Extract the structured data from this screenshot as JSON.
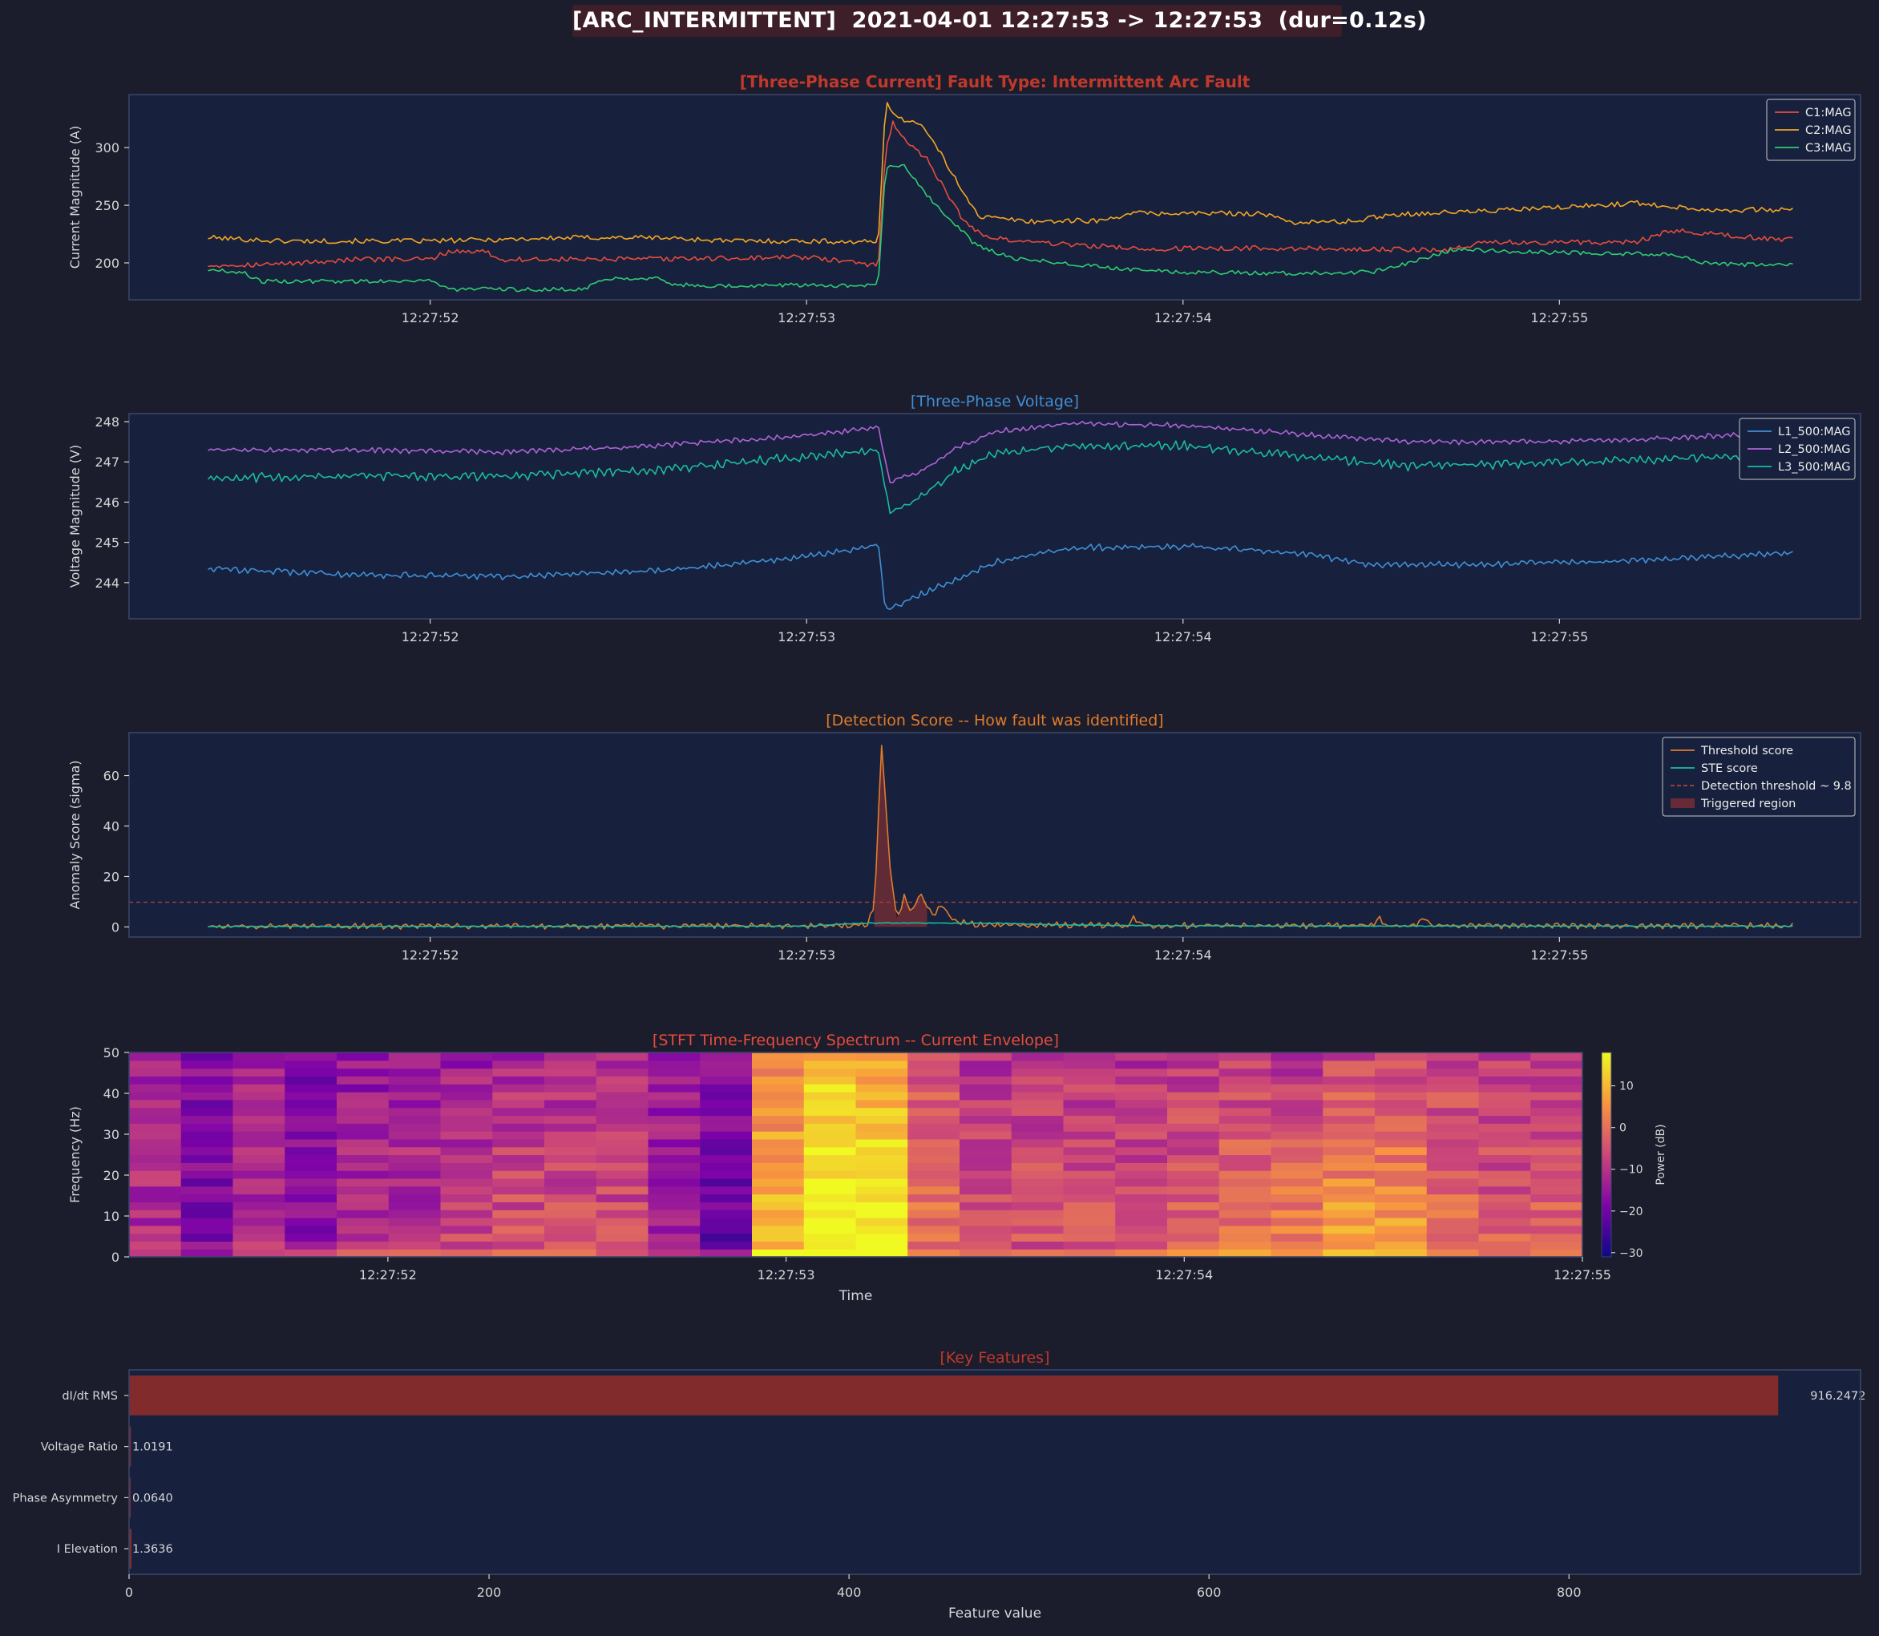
{
  "suptitle": "[ARC_INTERMITTENT]  2021-04-01 12:27:53 -> 12:27:53  (dur=0.12s)",
  "colors": {
    "figure_bg": "#1b1c2c",
    "axes_bg": "#17213d",
    "spine": "#3a4466",
    "text": "#d6d6d6",
    "title_current": "#c0392b",
    "title_voltage": "#3f8fd6",
    "title_detection": "#e07c2b",
    "title_spectrum": "#e74c3c",
    "title_features": "#c0392b"
  },
  "chart_data": [
    {
      "id": "current",
      "type": "line",
      "title": "[Three-Phase Current]  Fault Type: Intermittent Arc Fault",
      "ylabel": "Current Magnitude (A)",
      "xlabel": "",
      "xlim": [
        51.2,
        55.8
      ],
      "ylim": [
        168,
        346
      ],
      "xticks": [
        52,
        53,
        54,
        55
      ],
      "xtick_labels": [
        "12:27:52",
        "12:27:53",
        "12:27:54",
        "12:27:55"
      ],
      "yticks": [
        200,
        250,
        300
      ],
      "legend": "top-right",
      "grid": false,
      "series": [
        {
          "name": "C1:MAG",
          "color": "#e74c3c",
          "shape": [
            [
              51.41,
              198
            ],
            [
              51.6,
              199
            ],
            [
              51.8,
              203
            ],
            [
              52.0,
              203
            ],
            [
              52.05,
              210
            ],
            [
              52.15,
              210
            ],
            [
              52.18,
              203
            ],
            [
              52.5,
              203
            ],
            [
              52.8,
              204
            ],
            [
              53.0,
              205
            ],
            [
              53.18,
              198
            ],
            [
              53.19,
              193
            ],
            [
              53.21,
              300
            ],
            [
              53.23,
              322
            ],
            [
              53.27,
              303
            ],
            [
              53.32,
              290
            ],
            [
              53.36,
              268
            ],
            [
              53.42,
              235
            ],
            [
              53.48,
              222
            ],
            [
              53.6,
              218
            ],
            [
              53.9,
              212
            ],
            [
              54.2,
              213
            ],
            [
              54.5,
              212
            ],
            [
              54.7,
              211
            ],
            [
              54.8,
              218
            ],
            [
              55.1,
              218
            ],
            [
              55.2,
              218
            ],
            [
              55.3,
              228
            ],
            [
              55.6,
              220
            ],
            [
              55.62,
              220
            ]
          ],
          "jitter": 2.2
        },
        {
          "name": "C2:MAG",
          "color": "#f5a623",
          "shape": [
            [
              51.41,
              222
            ],
            [
              51.6,
              219
            ],
            [
              51.8,
              219
            ],
            [
              52.0,
              219
            ],
            [
              52.4,
              222
            ],
            [
              52.6,
              222
            ],
            [
              52.8,
              219
            ],
            [
              53.0,
              219
            ],
            [
              53.18,
              218
            ],
            [
              53.19,
              215
            ],
            [
              53.21,
              342
            ],
            [
              53.24,
              325
            ],
            [
              53.3,
              322
            ],
            [
              53.35,
              298
            ],
            [
              53.4,
              270
            ],
            [
              53.46,
              240
            ],
            [
              53.6,
              236
            ],
            [
              53.8,
              237
            ],
            [
              53.85,
              243
            ],
            [
              54.2,
              243
            ],
            [
              54.3,
              235
            ],
            [
              54.45,
              236
            ],
            [
              54.55,
              242
            ],
            [
              54.8,
              245
            ],
            [
              55.0,
              248
            ],
            [
              55.2,
              252
            ],
            [
              55.4,
              246
            ],
            [
              55.6,
              246
            ],
            [
              55.62,
              246
            ]
          ],
          "jitter": 2.2
        },
        {
          "name": "C3:MAG",
          "color": "#2ecc71",
          "shape": [
            [
              51.41,
              194
            ],
            [
              51.5,
              192
            ],
            [
              51.55,
              184
            ],
            [
              51.8,
              184
            ],
            [
              52.0,
              185
            ],
            [
              52.05,
              177
            ],
            [
              52.4,
              177
            ],
            [
              52.48,
              187
            ],
            [
              52.6,
              187
            ],
            [
              52.65,
              181
            ],
            [
              52.8,
              180
            ],
            [
              53.0,
              181
            ],
            [
              53.18,
              180
            ],
            [
              53.19,
              182
            ],
            [
              53.21,
              282
            ],
            [
              53.26,
              285
            ],
            [
              53.31,
              262
            ],
            [
              53.37,
              242
            ],
            [
              53.45,
              215
            ],
            [
              53.55,
              204
            ],
            [
              53.8,
              196
            ],
            [
              54.0,
              192
            ],
            [
              54.3,
              191
            ],
            [
              54.5,
              192
            ],
            [
              54.6,
              200
            ],
            [
              54.72,
              212
            ],
            [
              54.85,
              210
            ],
            [
              55.0,
              209
            ],
            [
              55.2,
              208
            ],
            [
              55.3,
              207
            ],
            [
              55.4,
              199
            ],
            [
              55.62,
              198
            ]
          ],
          "jitter": 1.8
        }
      ]
    },
    {
      "id": "voltage",
      "type": "line",
      "title": "[Three-Phase Voltage]",
      "ylabel": "Voltage Magnitude (V)",
      "xlabel": "",
      "xlim": [
        51.2,
        55.8
      ],
      "ylim": [
        243.1,
        248.2
      ],
      "xticks": [
        52,
        53,
        54,
        55
      ],
      "xtick_labels": [
        "12:27:52",
        "12:27:53",
        "12:27:54",
        "12:27:55"
      ],
      "yticks": [
        244,
        245,
        246,
        247,
        248
      ],
      "legend": "top-right",
      "grid": false,
      "series": [
        {
          "name": "L1_500:MAG",
          "color": "#3f8fd6",
          "shape": [
            [
              51.41,
              244.35
            ],
            [
              51.8,
              244.2
            ],
            [
              52.2,
              244.15
            ],
            [
              52.6,
              244.3
            ],
            [
              52.9,
              244.55
            ],
            [
              53.15,
              244.85
            ],
            [
              53.19,
              244.95
            ],
            [
              53.21,
              243.3
            ],
            [
              53.28,
              243.6
            ],
            [
              53.4,
              244.1
            ],
            [
              53.5,
              244.5
            ],
            [
              53.7,
              244.85
            ],
            [
              54.0,
              244.9
            ],
            [
              54.3,
              244.75
            ],
            [
              54.5,
              244.45
            ],
            [
              54.8,
              244.45
            ],
            [
              55.2,
              244.55
            ],
            [
              55.62,
              244.75
            ]
          ],
          "jitter": 0.05
        },
        {
          "name": "L2_500:MAG",
          "color": "#b163d6",
          "shape": [
            [
              51.41,
              247.3
            ],
            [
              51.8,
              247.3
            ],
            [
              52.2,
              247.25
            ],
            [
              52.6,
              247.4
            ],
            [
              52.9,
              247.6
            ],
            [
              53.15,
              247.8
            ],
            [
              53.19,
              247.9
            ],
            [
              53.22,
              246.5
            ],
            [
              53.3,
              246.75
            ],
            [
              53.4,
              247.35
            ],
            [
              53.5,
              247.75
            ],
            [
              53.7,
              247.95
            ],
            [
              54.0,
              247.9
            ],
            [
              54.3,
              247.7
            ],
            [
              54.6,
              247.5
            ],
            [
              54.9,
              247.5
            ],
            [
              55.2,
              247.55
            ],
            [
              55.62,
              247.75
            ]
          ],
          "jitter": 0.04
        },
        {
          "name": "L3_500:MAG",
          "color": "#1abc9c",
          "shape": [
            [
              51.41,
              246.6
            ],
            [
              51.8,
              246.65
            ],
            [
              52.2,
              246.65
            ],
            [
              52.6,
              246.8
            ],
            [
              52.9,
              247.05
            ],
            [
              53.15,
              247.25
            ],
            [
              53.19,
              247.3
            ],
            [
              53.22,
              245.75
            ],
            [
              53.3,
              246.1
            ],
            [
              53.4,
              246.8
            ],
            [
              53.5,
              247.2
            ],
            [
              53.7,
              247.4
            ],
            [
              54.0,
              247.4
            ],
            [
              54.3,
              247.15
            ],
            [
              54.6,
              246.9
            ],
            [
              54.9,
              246.95
            ],
            [
              55.2,
              247.05
            ],
            [
              55.62,
              247.2
            ]
          ],
          "jitter": 0.07
        }
      ]
    },
    {
      "id": "detection",
      "type": "line",
      "title": "[Detection Score -- How fault was identified]",
      "ylabel": "Anomaly Score (sigma)",
      "xlabel": "",
      "xlim": [
        51.2,
        55.8
      ],
      "ylim": [
        -4,
        77
      ],
      "xticks": [
        52,
        53,
        54,
        55
      ],
      "xtick_labels": [
        "12:27:52",
        "12:27:53",
        "12:27:54",
        "12:27:55"
      ],
      "yticks": [
        0,
        20,
        40,
        60
      ],
      "legend": "top-right",
      "grid": false,
      "threshold": 9.8,
      "triggered_region": [
        53.18,
        53.32
      ],
      "series": [
        {
          "name": "Threshold score",
          "color": "#e07c2b",
          "shape": [
            [
              51.41,
              0.3
            ],
            [
              53.16,
              0.5
            ],
            [
              53.18,
              8
            ],
            [
              53.2,
              74
            ],
            [
              53.22,
              25
            ],
            [
              53.24,
              3
            ],
            [
              53.26,
              12
            ],
            [
              53.28,
              6
            ],
            [
              53.3,
              13
            ],
            [
              53.32,
              8
            ],
            [
              53.34,
              5
            ],
            [
              53.36,
              9
            ],
            [
              53.38,
              4
            ],
            [
              53.4,
              2
            ],
            [
              53.45,
              0.8
            ],
            [
              53.85,
              0.5
            ],
            [
              53.87,
              4
            ],
            [
              53.89,
              0.5
            ],
            [
              54.5,
              0.5
            ],
            [
              54.52,
              3.5
            ],
            [
              54.54,
              0.5
            ],
            [
              54.62,
              0.5
            ],
            [
              54.64,
              3.5
            ],
            [
              54.66,
              0.5
            ],
            [
              55.62,
              0.5
            ]
          ],
          "jitter": 0.7
        },
        {
          "name": "STE score",
          "color": "#1abc9c",
          "shape": [
            [
              51.41,
              0.2
            ],
            [
              53.0,
              0.3
            ],
            [
              53.1,
              1.2
            ],
            [
              53.2,
              1.6
            ],
            [
              53.5,
              1.5
            ],
            [
              53.7,
              0.8
            ],
            [
              54.0,
              0.4
            ],
            [
              55.62,
              0.3
            ]
          ],
          "jitter": 0.1
        },
        {
          "name": "Detection threshold ~ 9.8",
          "color": "#b0413e"
        },
        {
          "name": "Triggered region",
          "color": "#7a2e35"
        }
      ]
    },
    {
      "id": "spectrum",
      "type": "heatmap",
      "title": "[STFT Time-Frequency Spectrum -- Current Envelope]",
      "ylabel": "Frequency (Hz)",
      "xlabel": "Time",
      "xlim": [
        51.35,
        55.0
      ],
      "ylim": [
        0,
        50
      ],
      "xticks": [
        52,
        53,
        54,
        55
      ],
      "xtick_labels": [
        "12:27:52",
        "12:27:53",
        "12:27:54",
        "12:27:55"
      ],
      "yticks": [
        0,
        10,
        20,
        30,
        40,
        50
      ],
      "n_time_bins": 28,
      "n_freq_bins": 26,
      "colormap": "plasma",
      "colorbar_label": "Power (dB)",
      "colorbar_range": [
        -31,
        18
      ],
      "colorbar_ticks": [
        10,
        0,
        -10,
        -20,
        -30
      ],
      "colorbar_tick_labels": [
        "10",
        "0",
        "−10",
        "−20",
        "−30"
      ],
      "column_level_db": [
        -13,
        -18,
        -14,
        -18,
        -16,
        -14,
        -14,
        -12,
        -12,
        -11,
        -14,
        -17,
        3,
        11,
        7,
        -5,
        -11,
        -9,
        -10,
        -11,
        -9,
        -8,
        -10,
        -7,
        -6,
        -8,
        -9,
        -8
      ],
      "column_low_boost_db": [
        2,
        0,
        4,
        2,
        6,
        4,
        8,
        8,
        8,
        6,
        0,
        -4,
        8,
        10,
        12,
        6,
        8,
        4,
        6,
        8,
        8,
        10,
        14,
        16,
        14,
        10,
        6,
        6
      ],
      "seed": 7
    },
    {
      "id": "features",
      "type": "bar",
      "orientation": "horizontal",
      "title": "[Key Features]",
      "ylabel": "",
      "xlabel": "Feature value",
      "xlim": [
        0,
        962
      ],
      "xticks": [
        0,
        200,
        400,
        600,
        800
      ],
      "categories": [
        "dI/dt RMS",
        "Voltage Ratio",
        "Phase Asymmetry",
        "I Elevation"
      ],
      "values": [
        916.2472,
        1.0191,
        0.064,
        1.3636
      ],
      "value_labels": [
        "916.2472",
        "1.0191",
        "0.0640",
        "1.3636"
      ],
      "bar_color": "#812b2c",
      "grid": false
    }
  ]
}
